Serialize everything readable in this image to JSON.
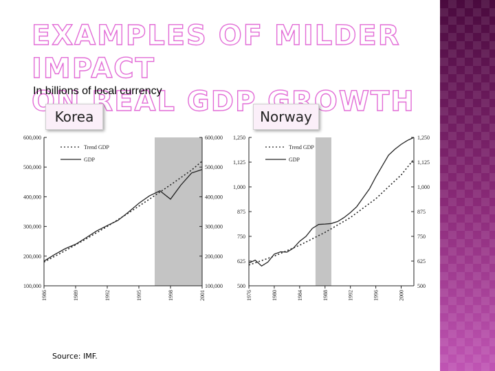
{
  "slide": {
    "title_line1": "EXAMPLES OF MILDER IMPACT",
    "title_line2": "ON REAL GDP GROWTH",
    "subtitle": "In billions of local currency",
    "source": "Source: IMF.",
    "accent_color": "#e26bd6",
    "sidebar_color": "#6e1a5f"
  },
  "chart_data": [
    {
      "type": "line",
      "title": "Korea",
      "xlabel": "",
      "ylabel": "",
      "xlim": [
        1986,
        2001
      ],
      "ylim": [
        100000,
        600000
      ],
      "x_ticks": [
        1986,
        1989,
        1992,
        1995,
        1998,
        2001
      ],
      "y_ticks": [
        "100,000",
        "200,000",
        "300,000",
        "400,000",
        "500,000",
        "600,000"
      ],
      "shaded_region": [
        1996.5,
        2001
      ],
      "legend_position": "top-left",
      "grid": false,
      "series": [
        {
          "name": "Trend GDP",
          "style": "dotted",
          "x": [
            1986,
            1988,
            1990,
            1992,
            1994,
            1996,
            1998,
            2000,
            2001
          ],
          "y": [
            180000,
            218000,
            258000,
            300000,
            345000,
            392000,
            440000,
            490000,
            520000
          ]
        },
        {
          "name": "GDP",
          "style": "solid",
          "x": [
            1986,
            1987,
            1988,
            1989,
            1990,
            1991,
            1992,
            1993,
            1994,
            1995,
            1996,
            1997,
            1998,
            1999,
            2000,
            2001
          ],
          "y": [
            183000,
            205000,
            225000,
            240000,
            262000,
            285000,
            303000,
            320000,
            348000,
            378000,
            403000,
            420000,
            392000,
            440000,
            480000,
            492000
          ]
        }
      ]
    },
    {
      "type": "line",
      "title": "Norway",
      "xlabel": "",
      "ylabel": "",
      "xlim": [
        1976,
        2002
      ],
      "ylim": [
        500,
        1250
      ],
      "x_ticks": [
        1976,
        1980,
        1984,
        1988,
        1992,
        1996,
        2000
      ],
      "y_ticks": [
        "500",
        "625",
        "750",
        "875",
        "1,000",
        "1,125",
        "1,250"
      ],
      "shaded_region": [
        1986.5,
        1989
      ],
      "legend_position": "top-left",
      "grid": false,
      "series": [
        {
          "name": "Trend GDP",
          "style": "dotted",
          "x": [
            1976,
            1980,
            1984,
            1988,
            1992,
            1996,
            2000,
            2002
          ],
          "y": [
            605,
            650,
            705,
            770,
            845,
            940,
            1060,
            1140
          ]
        },
        {
          "name": "GDP",
          "style": "solid",
          "x": [
            1976,
            1977,
            1978,
            1979,
            1980,
            1981,
            1982,
            1983,
            1984,
            1985,
            1986,
            1987,
            1988,
            1989,
            1990,
            1991,
            1992,
            1993,
            1994,
            1995,
            1996,
            1997,
            1998,
            1999,
            2000,
            2001,
            2002
          ],
          "y": [
            615,
            630,
            600,
            620,
            660,
            672,
            670,
            690,
            725,
            750,
            790,
            810,
            812,
            815,
            825,
            845,
            870,
            900,
            945,
            990,
            1050,
            1105,
            1160,
            1190,
            1215,
            1235,
            1250
          ]
        }
      ]
    }
  ]
}
